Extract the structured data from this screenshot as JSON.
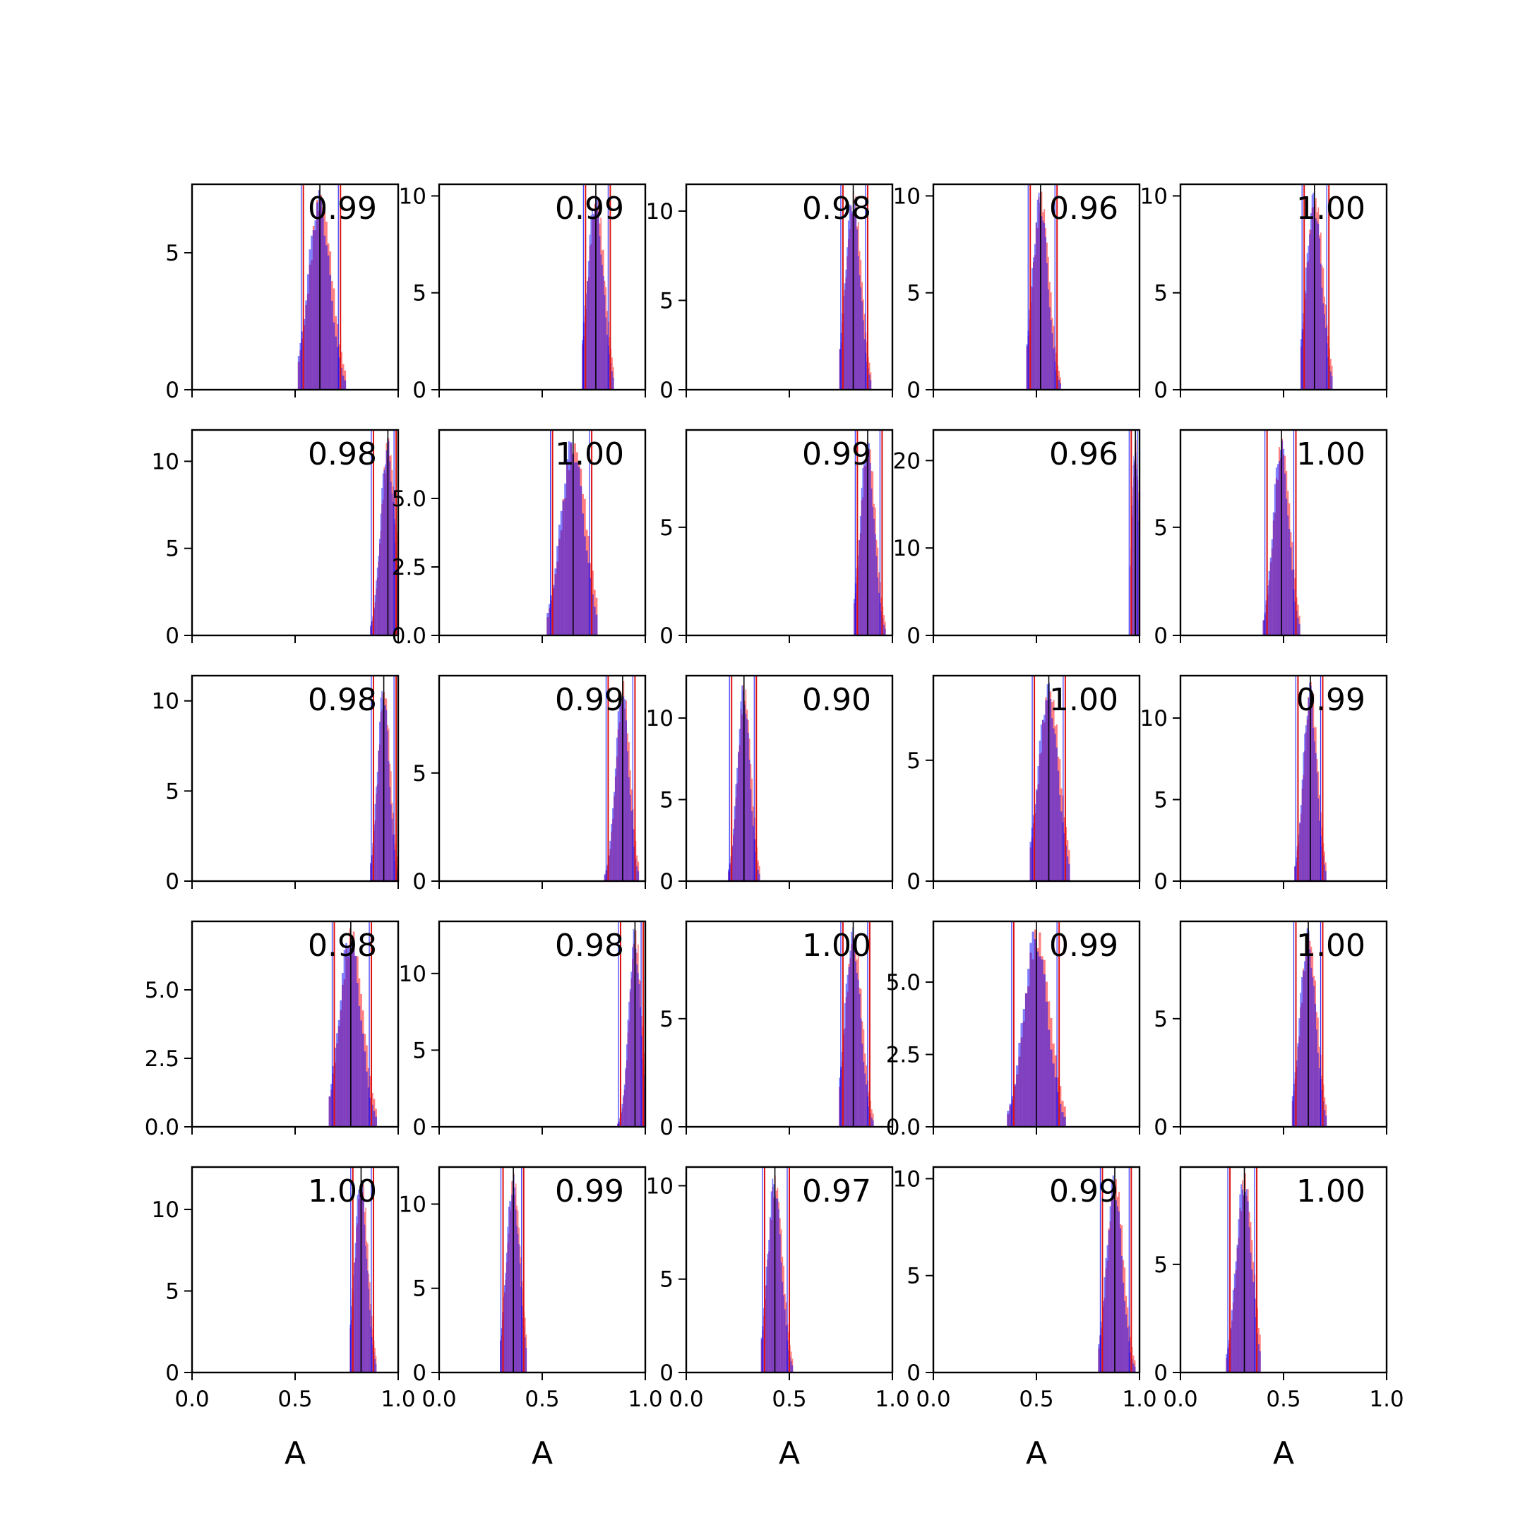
{
  "colors": {
    "series_red": "#ff0000",
    "series_blue": "#0000ff",
    "overlap": "#7b2fbe",
    "mean_line": "#000000",
    "interval_line": "#dd1111",
    "frame": "#000000"
  },
  "chart_data": {
    "type": "histogram-grid",
    "rows": 5,
    "cols": 5,
    "xlabel": "A",
    "xlim": [
      0,
      1
    ],
    "x_ticks": [
      "0.0",
      "0.5",
      "1.0"
    ],
    "series": [
      {
        "name": "",
        "color": "#ff0000",
        "alpha": 0.5
      },
      {
        "name": "",
        "color": "#0000ff",
        "alpha": 0.5
      }
    ],
    "panels": [
      {
        "label": "0.99",
        "mean": 0.62,
        "sd": 0.055,
        "lo": 0.54,
        "hi": 0.72,
        "ymax": 7.5,
        "yticks": [
          0,
          5
        ],
        "ytick_labels": [
          "0",
          "5"
        ]
      },
      {
        "label": "0.99",
        "mean": 0.76,
        "sd": 0.04,
        "lo": 0.71,
        "hi": 0.83,
        "ymax": 10.6,
        "yticks": [
          0,
          5,
          10
        ],
        "ytick_labels": [
          "0",
          "5",
          "10"
        ]
      },
      {
        "label": "0.98",
        "mean": 0.81,
        "sd": 0.038,
        "lo": 0.76,
        "hi": 0.88,
        "ymax": 11.5,
        "yticks": [
          0,
          5,
          10
        ],
        "ytick_labels": [
          "0",
          "5",
          "10"
        ]
      },
      {
        "label": "0.96",
        "mean": 0.52,
        "sd": 0.04,
        "lo": 0.47,
        "hi": 0.6,
        "ymax": 10.6,
        "yticks": [
          0,
          5,
          10
        ],
        "ytick_labels": [
          "0",
          "5",
          "10"
        ]
      },
      {
        "label": "1.00",
        "mean": 0.65,
        "sd": 0.04,
        "lo": 0.6,
        "hi": 0.72,
        "ymax": 10.6,
        "yticks": [
          0,
          5,
          10
        ],
        "ytick_labels": [
          "0",
          "5",
          "10"
        ]
      },
      {
        "label": "0.98",
        "mean": 0.95,
        "sd": 0.035,
        "lo": 0.88,
        "hi": 0.99,
        "ymax": 11.8,
        "yticks": [
          0,
          5,
          10
        ],
        "ytick_labels": [
          "0",
          "5",
          "10"
        ]
      },
      {
        "label": "1.00",
        "mean": 0.65,
        "sd": 0.06,
        "lo": 0.55,
        "hi": 0.74,
        "ymax": 7.5,
        "yticks": [
          0,
          2.5,
          5
        ],
        "ytick_labels": [
          "0.0",
          "2.5",
          "5.0"
        ]
      },
      {
        "label": "0.99",
        "mean": 0.88,
        "sd": 0.036,
        "lo": 0.83,
        "hi": 0.95,
        "ymax": 9.5,
        "yticks": [
          0,
          5
        ],
        "ytick_labels": [
          "0",
          "5"
        ]
      },
      {
        "label": "0.96",
        "mean": 0.98,
        "sd": 0.018,
        "lo": 0.96,
        "hi": 1.0,
        "ymax": 23.5,
        "yticks": [
          0,
          10,
          20
        ],
        "ytick_labels": [
          "0",
          "10",
          "20"
        ]
      },
      {
        "label": "1.00",
        "mean": 0.49,
        "sd": 0.04,
        "lo": 0.42,
        "hi": 0.56,
        "ymax": 9.5,
        "yticks": [
          0,
          5
        ],
        "ytick_labels": [
          "0",
          "5"
        ]
      },
      {
        "label": "0.98",
        "mean": 0.93,
        "sd": 0.03,
        "lo": 0.88,
        "hi": 0.99,
        "ymax": 11.4,
        "yticks": [
          0,
          5,
          10
        ],
        "ytick_labels": [
          "0",
          "5",
          "10"
        ]
      },
      {
        "label": "0.99",
        "mean": 0.89,
        "sd": 0.034,
        "lo": 0.82,
        "hi": 0.95,
        "ymax": 9.5,
        "yticks": [
          0,
          5
        ],
        "ytick_labels": [
          "0",
          "5"
        ]
      },
      {
        "label": "0.90",
        "mean": 0.28,
        "sd": 0.032,
        "lo": 0.22,
        "hi": 0.34,
        "ymax": 12.6,
        "yticks": [
          0,
          5,
          10
        ],
        "ytick_labels": [
          "0",
          "5",
          "10"
        ]
      },
      {
        "label": "1.00",
        "mean": 0.56,
        "sd": 0.05,
        "lo": 0.49,
        "hi": 0.64,
        "ymax": 8.5,
        "yticks": [
          0,
          5
        ],
        "ytick_labels": [
          "0",
          "5"
        ]
      },
      {
        "label": "0.99",
        "mean": 0.63,
        "sd": 0.034,
        "lo": 0.57,
        "hi": 0.69,
        "ymax": 12.6,
        "yticks": [
          0,
          5,
          10
        ],
        "ytick_labels": [
          "0",
          "5",
          "10"
        ]
      },
      {
        "label": "0.98",
        "mean": 0.77,
        "sd": 0.055,
        "lo": 0.69,
        "hi": 0.87,
        "ymax": 7.5,
        "yticks": [
          0,
          2.5,
          5
        ],
        "ytick_labels": [
          "0.0",
          "2.5",
          "5.0"
        ]
      },
      {
        "label": "0.98",
        "mean": 0.95,
        "sd": 0.03,
        "lo": 0.88,
        "hi": 0.99,
        "ymax": 13.4,
        "yticks": [
          0,
          5,
          10
        ],
        "ytick_labels": [
          "0",
          "5",
          "10"
        ]
      },
      {
        "label": "1.00",
        "mean": 0.81,
        "sd": 0.04,
        "lo": 0.76,
        "hi": 0.89,
        "ymax": 9.5,
        "yticks": [
          0,
          5
        ],
        "ytick_labels": [
          "0",
          "5"
        ]
      },
      {
        "label": "0.99",
        "mean": 0.5,
        "sd": 0.062,
        "lo": 0.39,
        "hi": 0.61,
        "ymax": 7.1,
        "yticks": [
          0,
          2.5,
          5
        ],
        "ytick_labels": [
          "0.0",
          "2.5",
          "5.0"
        ]
      },
      {
        "label": "1.00",
        "mean": 0.62,
        "sd": 0.04,
        "lo": 0.56,
        "hi": 0.69,
        "ymax": 9.5,
        "yticks": [
          0,
          5
        ],
        "ytick_labels": [
          "0",
          "5"
        ]
      },
      {
        "label": "1.00",
        "mean": 0.82,
        "sd": 0.032,
        "lo": 0.78,
        "hi": 0.88,
        "ymax": 12.6,
        "yticks": [
          0,
          5,
          10
        ],
        "ytick_labels": [
          "0",
          "5",
          "10"
        ]
      },
      {
        "label": "0.99",
        "mean": 0.36,
        "sd": 0.034,
        "lo": 0.31,
        "hi": 0.41,
        "ymax": 12.2,
        "yticks": [
          0,
          5,
          10
        ],
        "ytick_labels": [
          "0",
          "5",
          "10"
        ]
      },
      {
        "label": "0.97",
        "mean": 0.43,
        "sd": 0.036,
        "lo": 0.38,
        "hi": 0.5,
        "ymax": 11.0,
        "yticks": [
          0,
          5,
          10
        ],
        "ytick_labels": [
          "0",
          "5",
          "10"
        ]
      },
      {
        "label": "0.99",
        "mean": 0.88,
        "sd": 0.04,
        "lo": 0.82,
        "hi": 0.96,
        "ymax": 10.6,
        "yticks": [
          0,
          5,
          10
        ],
        "ytick_labels": [
          "0",
          "5",
          "10"
        ]
      },
      {
        "label": "1.00",
        "mean": 0.31,
        "sd": 0.04,
        "lo": 0.24,
        "hi": 0.37,
        "ymax": 9.5,
        "yticks": [
          0,
          5
        ],
        "ytick_labels": [
          "0",
          "5"
        ]
      }
    ]
  }
}
